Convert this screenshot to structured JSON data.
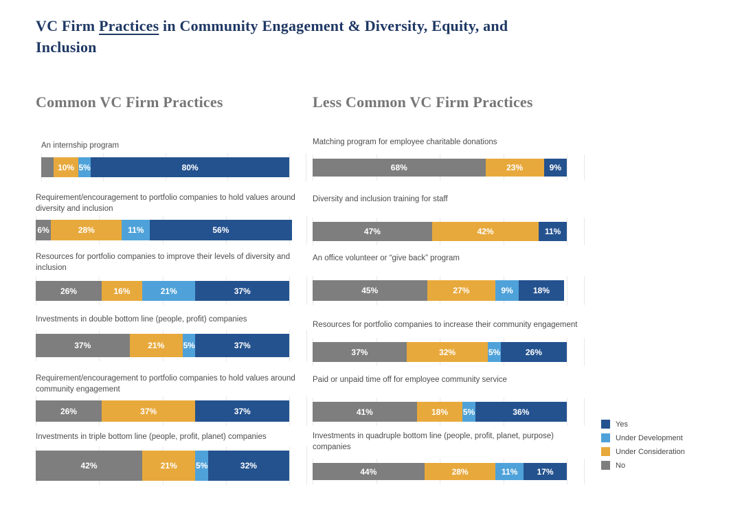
{
  "title": {
    "prefix": "VC Firm ",
    "underlined": "Practices",
    "suffix": " in Community Engagement & Diversity, Equity, and\nInclusion"
  },
  "legend": {
    "items": [
      {
        "label": "Yes",
        "color": "#24528F"
      },
      {
        "label": "Under Development",
        "color": "#4FA2D9"
      },
      {
        "label": "Under Consideration",
        "color": "#E8A93C"
      },
      {
        "label": "No",
        "color": "#7E7E7E"
      }
    ]
  },
  "chart_data": {
    "type": "bar",
    "orientation": "horizontal_stacked",
    "unit": "percent",
    "xlim": [
      0,
      107
    ],
    "gridlines_percent": [
      0,
      25,
      50,
      75,
      100
    ],
    "grid": true,
    "legend_position": "right",
    "series_order": [
      "No",
      "Under Consideration",
      "Under Development",
      "Yes"
    ],
    "colors": {
      "Yes": "#24528F",
      "Under Development": "#4FA2D9",
      "Under Consideration": "#E8A93C",
      "No": "#7E7E7E"
    },
    "panels": [
      {
        "header": "Common VC Firm Practices",
        "items": [
          {
            "label": "An internship program",
            "segments": [
              {
                "series": "No",
                "value": 5,
                "text": ""
              },
              {
                "series": "Under Consideration",
                "value": 10,
                "text": "10%"
              },
              {
                "series": "Under Development",
                "value": 5,
                "text": "5%"
              },
              {
                "series": "Yes",
                "value": 80,
                "text": "80%"
              }
            ]
          },
          {
            "label": "Requirement/encouragement to portfolio companies to hold values around\ndiversity and inclusion",
            "segments": [
              {
                "series": "No",
                "value": 6,
                "text": "6%"
              },
              {
                "series": "Under Consideration",
                "value": 28,
                "text": "28%"
              },
              {
                "series": "Under Development",
                "value": 11,
                "text": "11%"
              },
              {
                "series": "Yes",
                "value": 56,
                "text": "56%"
              }
            ]
          },
          {
            "label": "Resources for portfolio companies to improve their levels of diversity and\ninclusion",
            "segments": [
              {
                "series": "No",
                "value": 26,
                "text": "26%"
              },
              {
                "series": "Under Consideration",
                "value": 16,
                "text": "16%"
              },
              {
                "series": "Under Development",
                "value": 21,
                "text": "21%"
              },
              {
                "series": "Yes",
                "value": 37,
                "text": "37%"
              }
            ]
          },
          {
            "label": "Investments in double bottom line (people, profit) companies",
            "segments": [
              {
                "series": "No",
                "value": 37,
                "text": "37%"
              },
              {
                "series": "Under Consideration",
                "value": 21,
                "text": "21%"
              },
              {
                "series": "Under Development",
                "value": 5,
                "text": "5%"
              },
              {
                "series": "Yes",
                "value": 37,
                "text": "37%"
              }
            ]
          },
          {
            "label": "Requirement/encouragement to portfolio companies to hold values around\ncommunity engagement",
            "segments": [
              {
                "series": "No",
                "value": 26,
                "text": "26%"
              },
              {
                "series": "Under Consideration",
                "value": 37,
                "text": "37%"
              },
              {
                "series": "Yes",
                "value": 37,
                "text": "37%"
              }
            ]
          },
          {
            "label": "Investments in triple bottom line (people, profit, planet) companies",
            "segments": [
              {
                "series": "No",
                "value": 42,
                "text": "42%"
              },
              {
                "series": "Under Consideration",
                "value": 21,
                "text": "21%"
              },
              {
                "series": "Under Development",
                "value": 5,
                "text": "5%"
              },
              {
                "series": "Yes",
                "value": 32,
                "text": "32%"
              }
            ]
          }
        ]
      },
      {
        "header": "Less Common VC Firm Practices",
        "items": [
          {
            "label": "Matching program for employee charitable donations",
            "segments": [
              {
                "series": "No",
                "value": 68,
                "text": "68%"
              },
              {
                "series": "Under Consideration",
                "value": 23,
                "text": "23%"
              },
              {
                "series": "Yes",
                "value": 9,
                "text": "9%"
              }
            ]
          },
          {
            "label": "Diversity and inclusion training for staff",
            "segments": [
              {
                "series": "No",
                "value": 47,
                "text": "47%"
              },
              {
                "series": "Under Consideration",
                "value": 42,
                "text": "42%"
              },
              {
                "series": "Yes",
                "value": 11,
                "text": "11%"
              }
            ]
          },
          {
            "label": "An office volunteer or “give back” program",
            "segments": [
              {
                "series": "No",
                "value": 45,
                "text": "45%"
              },
              {
                "series": "Under Consideration",
                "value": 27,
                "text": "27%"
              },
              {
                "series": "Under Development",
                "value": 9,
                "text": "9%"
              },
              {
                "series": "Yes",
                "value": 18,
                "text": "18%"
              }
            ]
          },
          {
            "label": "Resources for portfolio companies to increase their community engagement",
            "segments": [
              {
                "series": "No",
                "value": 37,
                "text": "37%"
              },
              {
                "series": "Under Consideration",
                "value": 32,
                "text": "32%"
              },
              {
                "series": "Under Development",
                "value": 5,
                "text": "5%"
              },
              {
                "series": "Yes",
                "value": 26,
                "text": "26%"
              }
            ]
          },
          {
            "label": "Paid or unpaid time off for employee community service",
            "segments": [
              {
                "series": "No",
                "value": 41,
                "text": "41%"
              },
              {
                "series": "Under Consideration",
                "value": 18,
                "text": "18%"
              },
              {
                "series": "Under Development",
                "value": 5,
                "text": "5%"
              },
              {
                "series": "Yes",
                "value": 36,
                "text": "36%"
              }
            ]
          },
          {
            "label": "Investments in quadruple bottom line (people, profit, planet, purpose)\ncompanies",
            "segments": [
              {
                "series": "No",
                "value": 44,
                "text": "44%"
              },
              {
                "series": "Under Consideration",
                "value": 28,
                "text": "28%"
              },
              {
                "series": "Under Development",
                "value": 11,
                "text": "11%"
              },
              {
                "series": "Yes",
                "value": 17,
                "text": "17%"
              }
            ]
          }
        ]
      }
    ]
  }
}
